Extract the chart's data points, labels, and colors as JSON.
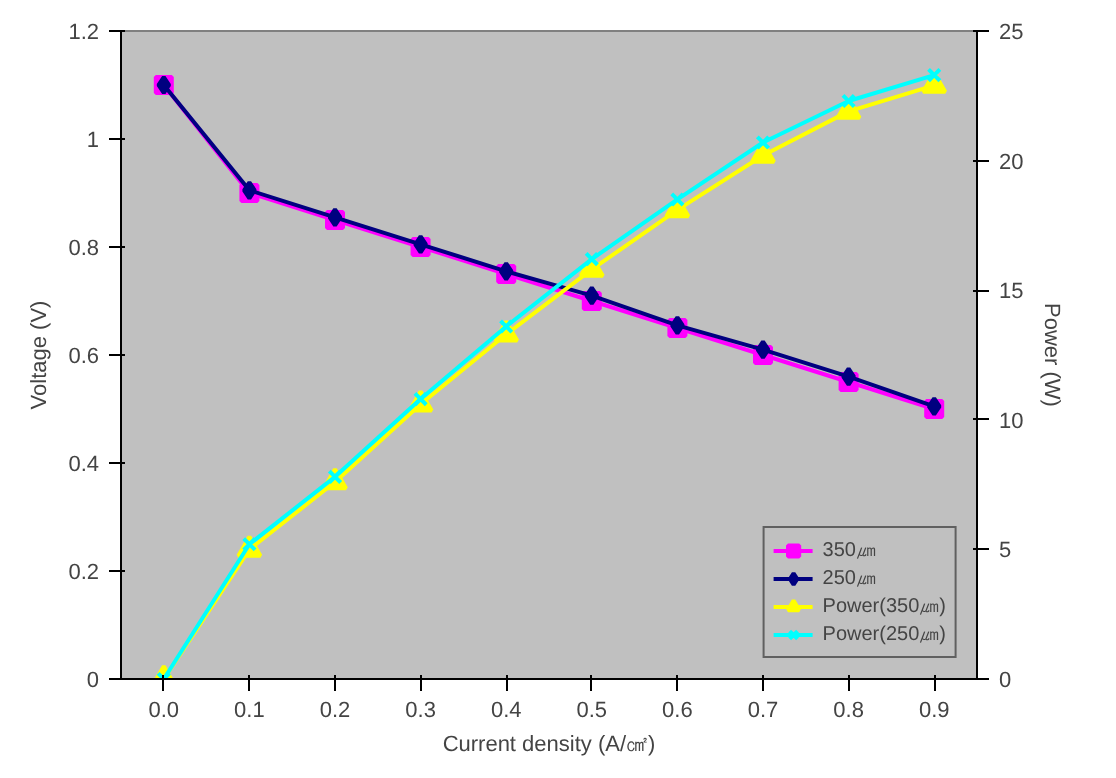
{
  "chart_data": {
    "type": "line",
    "xlabel": "Current density (A/㎠)",
    "ylabel": "Voltage (V)",
    "y2label": "Power (W)",
    "categories": [
      "0.0",
      "0.1",
      "0.2",
      "0.3",
      "0.4",
      "0.5",
      "0.6",
      "0.7",
      "0.8",
      "0.9"
    ],
    "ylim": [
      0,
      1.2
    ],
    "yticks": [
      0,
      0.2,
      0.4,
      0.6,
      0.8,
      1,
      1.2
    ],
    "y2lim": [
      0,
      25
    ],
    "y2ticks": [
      0,
      5,
      10,
      15,
      20,
      25
    ],
    "grid": false,
    "legend": "bottom right",
    "series": [
      {
        "name": "350㎛",
        "color": "#ff00ff",
        "marker": "square",
        "values": [
          1.1,
          0.9,
          0.85,
          0.8,
          0.75,
          0.7,
          0.65,
          0.6,
          0.55,
          0.5
        ]
      },
      {
        "name": "250㎛",
        "color": "#000080",
        "marker": "diamond",
        "values": [
          1.1,
          0.905,
          0.855,
          0.805,
          0.755,
          0.71,
          0.655,
          0.61,
          0.56,
          0.505
        ]
      },
      {
        "name": "Power(350㎛)",
        "color": "#ffff00",
        "marker": "triangle",
        "axis": "y2",
        "values": [
          0,
          5.0,
          7.6,
          10.6,
          13.3,
          15.8,
          18.1,
          20.2,
          21.9,
          22.9
        ]
      },
      {
        "name": "Power(250㎛)",
        "color": "#00ffff",
        "marker": "cross",
        "axis": "y2",
        "values": [
          0,
          5.2,
          7.8,
          10.8,
          13.6,
          16.2,
          18.5,
          20.7,
          22.3,
          23.3
        ]
      }
    ]
  }
}
